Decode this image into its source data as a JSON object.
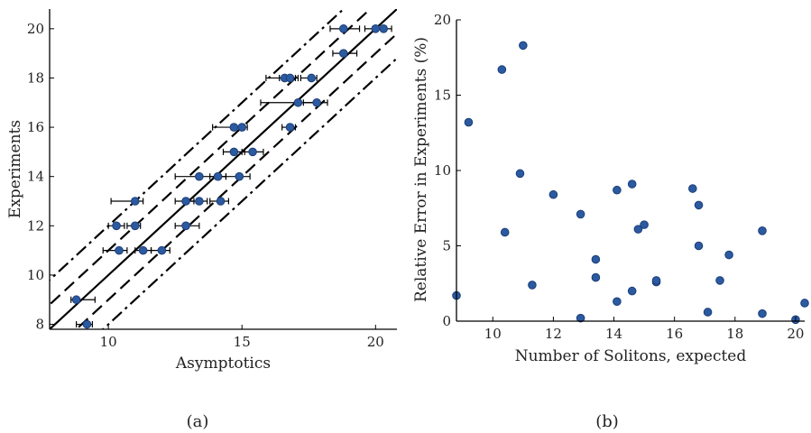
{
  "figure": {
    "panel_labels": [
      "(a)",
      "(b)"
    ]
  },
  "chart_data": [
    {
      "type": "scatter",
      "panel": "(a)",
      "xlabel": "Asymptotics",
      "ylabel": "Experiments",
      "xlim": [
        7.8,
        20.8
      ],
      "ylim": [
        7.8,
        20.8
      ],
      "xticks": [
        10,
        15,
        20
      ],
      "yticks": [
        8,
        10,
        12,
        14,
        16,
        18,
        20
      ],
      "grid": false,
      "marker_color": "#2c5aa0",
      "reference_lines": [
        {
          "style": "solid",
          "offset": 0
        },
        {
          "style": "dashed",
          "offset": 1
        },
        {
          "style": "dashed",
          "offset": -1
        },
        {
          "style": "dashdot",
          "offset": 2
        },
        {
          "style": "dashdot",
          "offset": -2
        }
      ],
      "points": [
        {
          "x": 18.8,
          "y": 20,
          "xerr": [
            18.3,
            19.4
          ]
        },
        {
          "x": 20.0,
          "y": 20,
          "xerr": [
            19.6,
            20.4
          ]
        },
        {
          "x": 20.3,
          "y": 20,
          "xerr": [
            19.9,
            20.6
          ]
        },
        {
          "x": 18.8,
          "y": 19,
          "xerr": [
            18.4,
            19.3
          ]
        },
        {
          "x": 16.6,
          "y": 18,
          "xerr": [
            15.9,
            17.0
          ]
        },
        {
          "x": 16.8,
          "y": 18,
          "xerr": [
            16.4,
            17.1
          ]
        },
        {
          "x": 17.6,
          "y": 18,
          "xerr": [
            17.2,
            17.8
          ]
        },
        {
          "x": 17.1,
          "y": 17,
          "xerr": [
            15.7,
            17.8
          ]
        },
        {
          "x": 17.8,
          "y": 17,
          "xerr": [
            17.3,
            18.2
          ]
        },
        {
          "x": 14.7,
          "y": 16,
          "xerr": [
            13.9,
            15.1
          ]
        },
        {
          "x": 15.0,
          "y": 16,
          "xerr": [
            14.6,
            15.2
          ]
        },
        {
          "x": 16.8,
          "y": 16,
          "xerr": [
            16.5,
            17.0
          ]
        },
        {
          "x": 14.7,
          "y": 15,
          "xerr": [
            14.3,
            15.1
          ]
        },
        {
          "x": 15.4,
          "y": 15,
          "xerr": [
            15.0,
            15.8
          ]
        },
        {
          "x": 13.4,
          "y": 14,
          "xerr": [
            12.5,
            14.4
          ]
        },
        {
          "x": 14.1,
          "y": 14,
          "xerr": [
            13.8,
            14.4
          ]
        },
        {
          "x": 14.9,
          "y": 14,
          "xerr": [
            14.0,
            15.3
          ]
        },
        {
          "x": 11.0,
          "y": 13,
          "xerr": [
            10.1,
            11.3
          ]
        },
        {
          "x": 12.9,
          "y": 13,
          "xerr": [
            12.5,
            13.2
          ]
        },
        {
          "x": 13.4,
          "y": 13,
          "xerr": [
            13.0,
            13.7
          ]
        },
        {
          "x": 14.2,
          "y": 13,
          "xerr": [
            13.8,
            14.5
          ]
        },
        {
          "x": 10.3,
          "y": 12,
          "xerr": [
            10.0,
            10.6
          ]
        },
        {
          "x": 11.0,
          "y": 12,
          "xerr": [
            10.7,
            11.2
          ]
        },
        {
          "x": 12.9,
          "y": 12,
          "xerr": [
            12.5,
            13.4
          ]
        },
        {
          "x": 10.4,
          "y": 11,
          "xerr": [
            9.8,
            10.7
          ]
        },
        {
          "x": 11.3,
          "y": 11,
          "xerr": [
            11.0,
            11.6
          ]
        },
        {
          "x": 12.0,
          "y": 11,
          "xerr": [
            11.6,
            12.3
          ]
        },
        {
          "x": 8.8,
          "y": 9,
          "xerr": [
            8.6,
            9.5
          ]
        },
        {
          "x": 9.2,
          "y": 8,
          "xerr": [
            8.8,
            9.4
          ]
        }
      ]
    },
    {
      "type": "scatter",
      "panel": "(b)",
      "xlabel": "Number of Solitons, expected",
      "ylabel": "Relative Error in Experiments (%)",
      "xlim": [
        8.8,
        20.3
      ],
      "ylim": [
        0,
        20
      ],
      "xticks": [
        10,
        12,
        14,
        16,
        18,
        20
      ],
      "yticks": [
        0,
        5,
        10,
        15,
        20
      ],
      "grid": false,
      "marker_color": "#2c5aa0",
      "points": [
        {
          "x": 8.8,
          "y": 1.7
        },
        {
          "x": 9.2,
          "y": 13.2
        },
        {
          "x": 10.3,
          "y": 16.7
        },
        {
          "x": 10.4,
          "y": 5.9
        },
        {
          "x": 10.9,
          "y": 9.8
        },
        {
          "x": 11.0,
          "y": 18.3
        },
        {
          "x": 11.3,
          "y": 2.4
        },
        {
          "x": 12.0,
          "y": 8.4
        },
        {
          "x": 12.9,
          "y": 7.1
        },
        {
          "x": 12.9,
          "y": 0.2
        },
        {
          "x": 13.4,
          "y": 2.9
        },
        {
          "x": 13.4,
          "y": 4.1
        },
        {
          "x": 14.1,
          "y": 8.7
        },
        {
          "x": 14.1,
          "y": 1.3
        },
        {
          "x": 14.6,
          "y": 9.1
        },
        {
          "x": 14.6,
          "y": 2.0
        },
        {
          "x": 14.8,
          "y": 6.1
        },
        {
          "x": 15.0,
          "y": 6.4
        },
        {
          "x": 15.4,
          "y": 2.6
        },
        {
          "x": 15.4,
          "y": 2.7
        },
        {
          "x": 16.6,
          "y": 8.8
        },
        {
          "x": 16.8,
          "y": 7.7
        },
        {
          "x": 16.8,
          "y": 5.0
        },
        {
          "x": 17.1,
          "y": 0.6
        },
        {
          "x": 17.5,
          "y": 2.7
        },
        {
          "x": 17.8,
          "y": 4.4
        },
        {
          "x": 18.9,
          "y": 6.0
        },
        {
          "x": 18.9,
          "y": 0.5
        },
        {
          "x": 20.0,
          "y": 0.1
        },
        {
          "x": 20.3,
          "y": 1.2
        }
      ]
    }
  ]
}
